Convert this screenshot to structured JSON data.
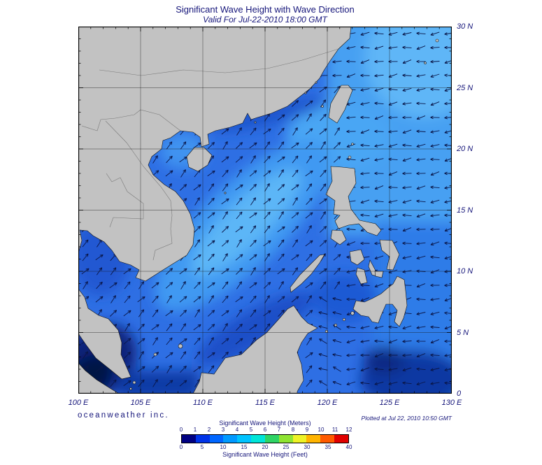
{
  "header": {
    "title": "Significant Wave Height with Wave Direction",
    "subtitle": "Valid For Jul-22-2010 18:00 GMT"
  },
  "axes": {
    "lon_ticks": [
      "100 E",
      "105 E",
      "110 E",
      "115 E",
      "120 E",
      "125 E",
      "130 E"
    ],
    "lat_ticks": [
      "30 N",
      "25 N",
      "20 N",
      "15 N",
      "10 N",
      "5 N",
      "0"
    ]
  },
  "footer": {
    "credit": "oceanweather inc.",
    "plotted": "Plotted at Jul 22, 2010 10:50 GMT"
  },
  "colorbar": {
    "meters_label": "Significant Wave Height (Meters)",
    "feet_label": "Significant Wave Height (Feet)",
    "meters_ticks": [
      "0",
      "1",
      "2",
      "3",
      "4",
      "5",
      "6",
      "7",
      "8",
      "9",
      "10",
      "11",
      "12"
    ],
    "feet_ticks": [
      "0",
      "5",
      "10",
      "15",
      "20",
      "25",
      "30",
      "35",
      "40"
    ],
    "segment_colors": [
      "#000082",
      "#0033e8",
      "#0066ff",
      "#0099ff",
      "#00c3ff",
      "#00e5d8",
      "#2fd465",
      "#8fe432",
      "#eef226",
      "#ffb400",
      "#ff5a00",
      "#e00000"
    ]
  },
  "map": {
    "sea_color": "#2e6fe4",
    "land_color": "#c2c2c2",
    "coast_color": "#141414",
    "grid_color": "#1a1a1a",
    "frame_color": "#000000",
    "arrow_color": "#0a1648",
    "wave_field_regions": [
      {
        "region": "pacific-east-of-philippines",
        "direction": "westward",
        "bearing_deg": 188
      },
      {
        "region": "sulu-celebes-seas",
        "direction": "west-northwestward",
        "bearing_deg": 160
      },
      {
        "region": "south-china-sea-gulf-of-thailand",
        "direction": "northeastward",
        "bearing_deg": 47
      }
    ]
  }
}
